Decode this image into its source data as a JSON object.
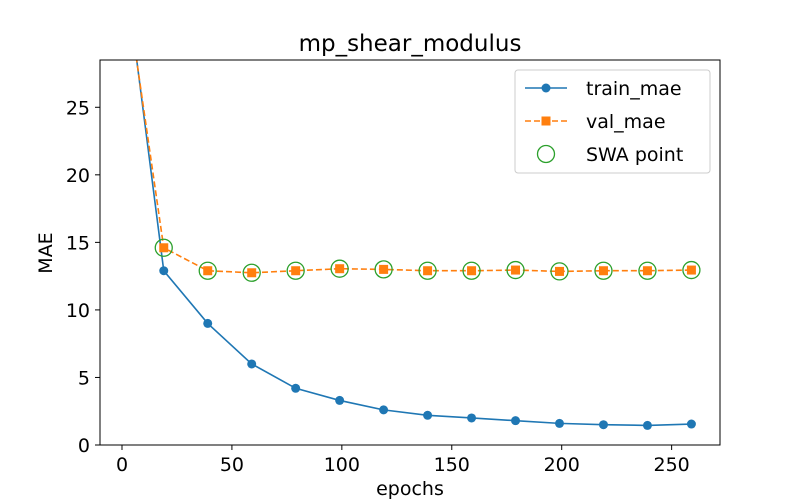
{
  "chart_data": {
    "type": "line",
    "title": "mp_shear_modulus",
    "xlabel": "epochs",
    "ylabel": "MAE",
    "xlim": [
      -10,
      272
    ],
    "ylim": [
      0,
      28.5
    ],
    "xticks": [
      0,
      50,
      100,
      150,
      200,
      250
    ],
    "yticks": [
      0,
      5,
      10,
      15,
      20,
      25
    ],
    "grid": false,
    "legend_position": "top-right",
    "series": [
      {
        "name": "train_mae",
        "color": "#1f77b4",
        "line_style": "solid",
        "marker": "circle",
        "x": [
          0,
          19,
          39,
          59,
          79,
          99,
          119,
          139,
          159,
          179,
          199,
          219,
          239,
          259
        ],
        "y": [
          37.0,
          12.9,
          9.0,
          6.0,
          4.2,
          3.3,
          2.6,
          2.2,
          2.0,
          1.8,
          1.6,
          1.5,
          1.45,
          1.55
        ]
      },
      {
        "name": "val_mae",
        "color": "#ff7f0e",
        "line_style": "dashed",
        "marker": "square",
        "x": [
          0,
          19,
          39,
          59,
          79,
          99,
          119,
          139,
          159,
          179,
          199,
          219,
          239,
          259
        ],
        "y": [
          36.0,
          14.6,
          12.9,
          12.75,
          12.9,
          13.05,
          13.0,
          12.9,
          12.9,
          12.95,
          12.85,
          12.9,
          12.9,
          12.95
        ]
      },
      {
        "name": "SWA point",
        "color": "#2ca02c",
        "line_style": "none",
        "marker": "hollow-circle",
        "x": [
          19,
          39,
          59,
          79,
          99,
          119,
          139,
          159,
          179,
          199,
          219,
          239,
          259
        ],
        "y": [
          14.6,
          12.9,
          12.75,
          12.9,
          13.05,
          13.0,
          12.9,
          12.9,
          12.95,
          12.85,
          12.9,
          12.9,
          12.95
        ]
      }
    ]
  }
}
